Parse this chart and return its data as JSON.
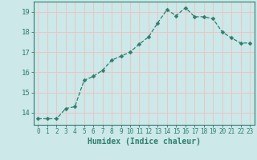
{
  "x": [
    0,
    1,
    2,
    3,
    4,
    5,
    6,
    7,
    8,
    9,
    10,
    11,
    12,
    13,
    14,
    15,
    16,
    17,
    18,
    19,
    20,
    21,
    22,
    23
  ],
  "y": [
    13.7,
    13.7,
    13.7,
    14.2,
    14.3,
    15.6,
    15.8,
    16.1,
    16.6,
    16.8,
    17.0,
    17.4,
    17.75,
    18.45,
    19.1,
    18.8,
    19.2,
    18.75,
    18.75,
    18.65,
    18.0,
    17.7,
    17.45,
    17.45
  ],
  "line_color": "#2e7d6e",
  "marker": "D",
  "marker_size": 2.5,
  "bg_color": "#cce8e8",
  "grid_major_color": "#f0c0c0",
  "grid_minor_color": "#e8d8d8",
  "axis_color": "#2e7d6e",
  "tick_color": "#2e7d6e",
  "xlabel": "Humidex (Indice chaleur)",
  "xlabel_fontsize": 7,
  "ytick_fontsize": 6.5,
  "xtick_fontsize": 5.5,
  "yticks": [
    14,
    15,
    16,
    17,
    18,
    19
  ],
  "xticks": [
    0,
    1,
    2,
    3,
    4,
    5,
    6,
    7,
    8,
    9,
    10,
    11,
    12,
    13,
    14,
    15,
    16,
    17,
    18,
    19,
    20,
    21,
    22,
    23
  ],
  "ylim": [
    13.4,
    19.5
  ],
  "xlim": [
    -0.5,
    23.5
  ]
}
